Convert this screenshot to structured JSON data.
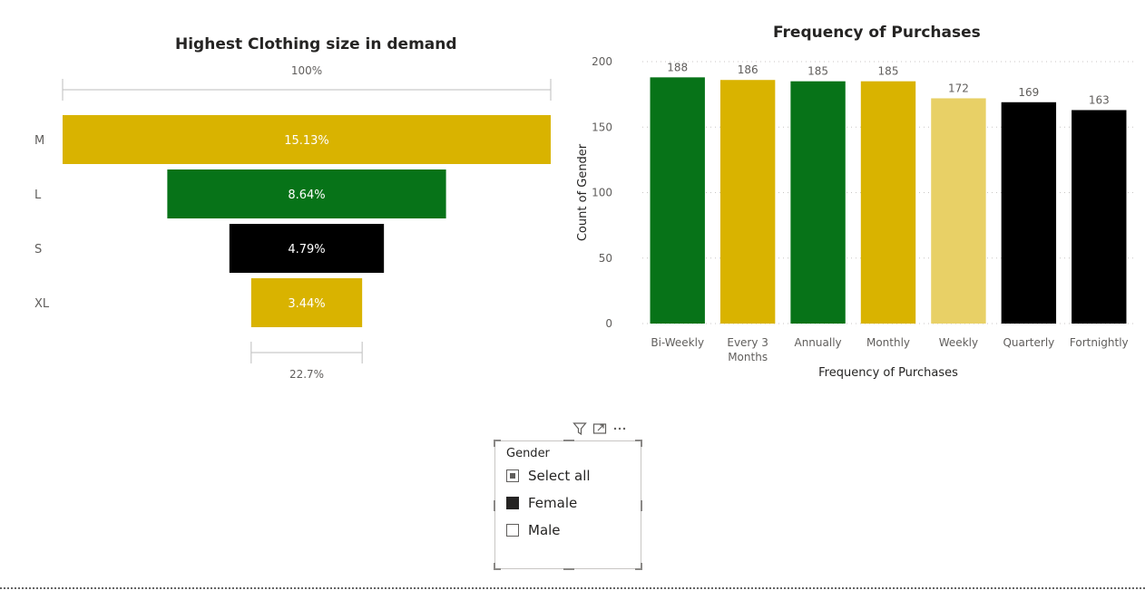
{
  "funnel": {
    "title": "Highest Clothing size in demand",
    "top_label": "100%",
    "bottom_label": "22.7%",
    "chart_data": {
      "type": "funnel",
      "title": "Highest Clothing size in demand",
      "categories": [
        "M",
        "L",
        "S",
        "XL"
      ],
      "values": [
        15.13,
        8.64,
        4.79,
        3.44
      ],
      "value_labels": [
        "15.13%",
        "8.64%",
        "4.79%",
        "3.44%"
      ],
      "colors": [
        "#D9B300",
        "#077318",
        "#000000",
        "#D9B300"
      ]
    }
  },
  "bar": {
    "title": "Frequency of Purchases",
    "chart_data": {
      "type": "bar",
      "title": "Frequency of Purchases",
      "xlabel": "Frequency of Purchases",
      "ylabel": "Count of Gender",
      "ylim": [
        0,
        200
      ],
      "yticks": [
        0,
        50,
        100,
        150,
        200
      ],
      "grid": true,
      "categories": [
        "Bi-Weekly",
        "Every 3 Months",
        "Annually",
        "Monthly",
        "Weekly",
        "Quarterly",
        "Fortnightly"
      ],
      "category_lines": [
        [
          "Bi-Weekly"
        ],
        [
          "Every 3",
          "Months"
        ],
        [
          "Annually"
        ],
        [
          "Monthly"
        ],
        [
          "Weekly"
        ],
        [
          "Quarterly"
        ],
        [
          "Fortnightly"
        ]
      ],
      "values": [
        188,
        186,
        185,
        185,
        172,
        169,
        163
      ],
      "colors": [
        "#077318",
        "#D9B300",
        "#077318",
        "#D9B300",
        "#E8D066",
        "#000000",
        "#000000"
      ]
    }
  },
  "slicer": {
    "title": "Gender",
    "items": [
      {
        "label": "Select all",
        "state": "partial"
      },
      {
        "label": "Female",
        "state": "checked"
      },
      {
        "label": "Male",
        "state": "unchecked"
      }
    ],
    "icons": [
      "filter-icon",
      "focus-mode-icon",
      "more-options-icon"
    ]
  }
}
